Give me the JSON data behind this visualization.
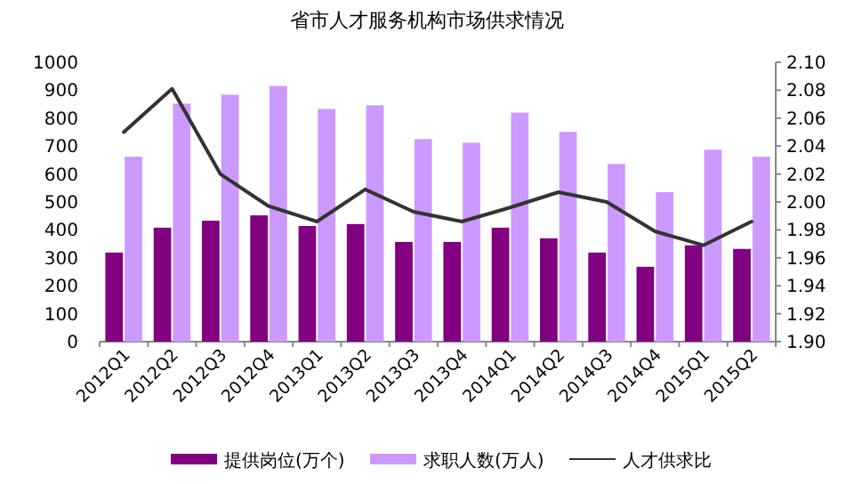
{
  "chart_data": {
    "type": "bar",
    "title": "省市人才服务机构市场供求情况",
    "categories": [
      "2012Q1",
      "2012Q2",
      "2012Q3",
      "2012Q4",
      "2013Q1",
      "2013Q2",
      "2013Q3",
      "2013Q4",
      "2014Q1",
      "2014Q2",
      "2014Q3",
      "2014Q4",
      "2015Q1",
      "2015Q2"
    ],
    "series": [
      {
        "name": "提供岗位(万个)",
        "color": "#800080",
        "values": [
          319,
          408,
          433,
          452,
          414,
          421,
          357,
          357,
          408,
          370,
          319,
          268,
          345,
          332
        ]
      },
      {
        "name": "求职人数(万人)",
        "color": "#cc99ff",
        "values": [
          662,
          852,
          884,
          915,
          833,
          846,
          725,
          712,
          820,
          751,
          636,
          535,
          687,
          662
        ]
      },
      {
        "name": "人才供求比",
        "type": "line",
        "axis": "y2",
        "color": "#333333",
        "values": [
          2.05,
          2.081,
          2.02,
          1.997,
          1.986,
          2.009,
          1.993,
          1.986,
          1.996,
          2.007,
          2.0,
          1.979,
          1.969,
          1.986
        ]
      }
    ],
    "ylim": [
      0,
      1000
    ],
    "yticks": [
      0,
      100,
      200,
      300,
      400,
      500,
      600,
      700,
      800,
      900,
      1000
    ],
    "y2lim": [
      1.9,
      2.1
    ],
    "y2ticks": [
      {
        "value": 1.9,
        "label": "1.90"
      },
      {
        "value": 1.92,
        "label": "1.92"
      },
      {
        "value": 1.94,
        "label": "1.94"
      },
      {
        "value": 1.96,
        "label": "1.96"
      },
      {
        "value": 1.98,
        "label": "1.98"
      },
      {
        "value": 2.0,
        "label": "2.00"
      },
      {
        "value": 2.02,
        "label": "2.02"
      },
      {
        "value": 2.04,
        "label": "2.04"
      },
      {
        "value": 2.06,
        "label": "2.06"
      },
      {
        "value": 2.08,
        "label": "2.08"
      },
      {
        "value": 2.1,
        "label": "2.10"
      }
    ],
    "grid": false,
    "legend": "bottom",
    "marker": "none"
  }
}
